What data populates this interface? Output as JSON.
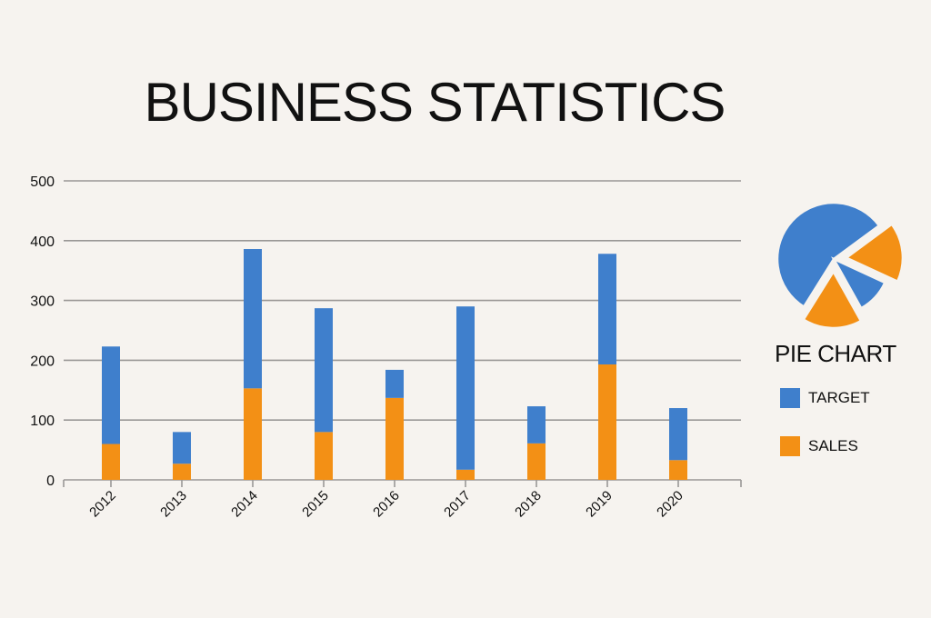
{
  "title": "BUSINESS STATISTICS",
  "colors": {
    "target": "#3f7fcc",
    "sales": "#f39015",
    "grid": "#9a9896",
    "background": "#f6f3ef"
  },
  "pie": {
    "title": "PIE CHART",
    "legend": [
      {
        "label": "TARGET",
        "color": "#3f7fcc"
      },
      {
        "label": "SALES",
        "color": "#f39015"
      }
    ]
  },
  "chart_data": [
    {
      "type": "bar",
      "stacked": true,
      "title": "BUSINESS STATISTICS",
      "xlabel": "",
      "ylabel": "",
      "categories": [
        "2012",
        "2013",
        "2014",
        "2015",
        "2016",
        "2017",
        "2018",
        "2019",
        "2020"
      ],
      "series": [
        {
          "name": "SALES",
          "color": "#f39015",
          "values": [
            60,
            27,
            153,
            80,
            137,
            17,
            61,
            193,
            33
          ]
        },
        {
          "name": "TARGET",
          "color": "#3f7fcc",
          "values": [
            163,
            53,
            233,
            207,
            47,
            273,
            62,
            185,
            87
          ]
        }
      ],
      "totals": [
        223,
        80,
        386,
        287,
        184,
        290,
        123,
        378,
        120
      ],
      "ylim": [
        0,
        500
      ],
      "yticks": [
        "0",
        "100",
        "200",
        "300",
        "400",
        "500"
      ],
      "grid": true,
      "legend_position": "right"
    },
    {
      "type": "pie",
      "title": "PIE CHART",
      "labels": [
        "TARGET",
        "SALES",
        "TARGET",
        "SALES"
      ],
      "values": [
        56,
        17,
        10,
        17
      ],
      "exploded": [
        false,
        true,
        false,
        true
      ],
      "legend": [
        "TARGET",
        "SALES"
      ]
    }
  ]
}
